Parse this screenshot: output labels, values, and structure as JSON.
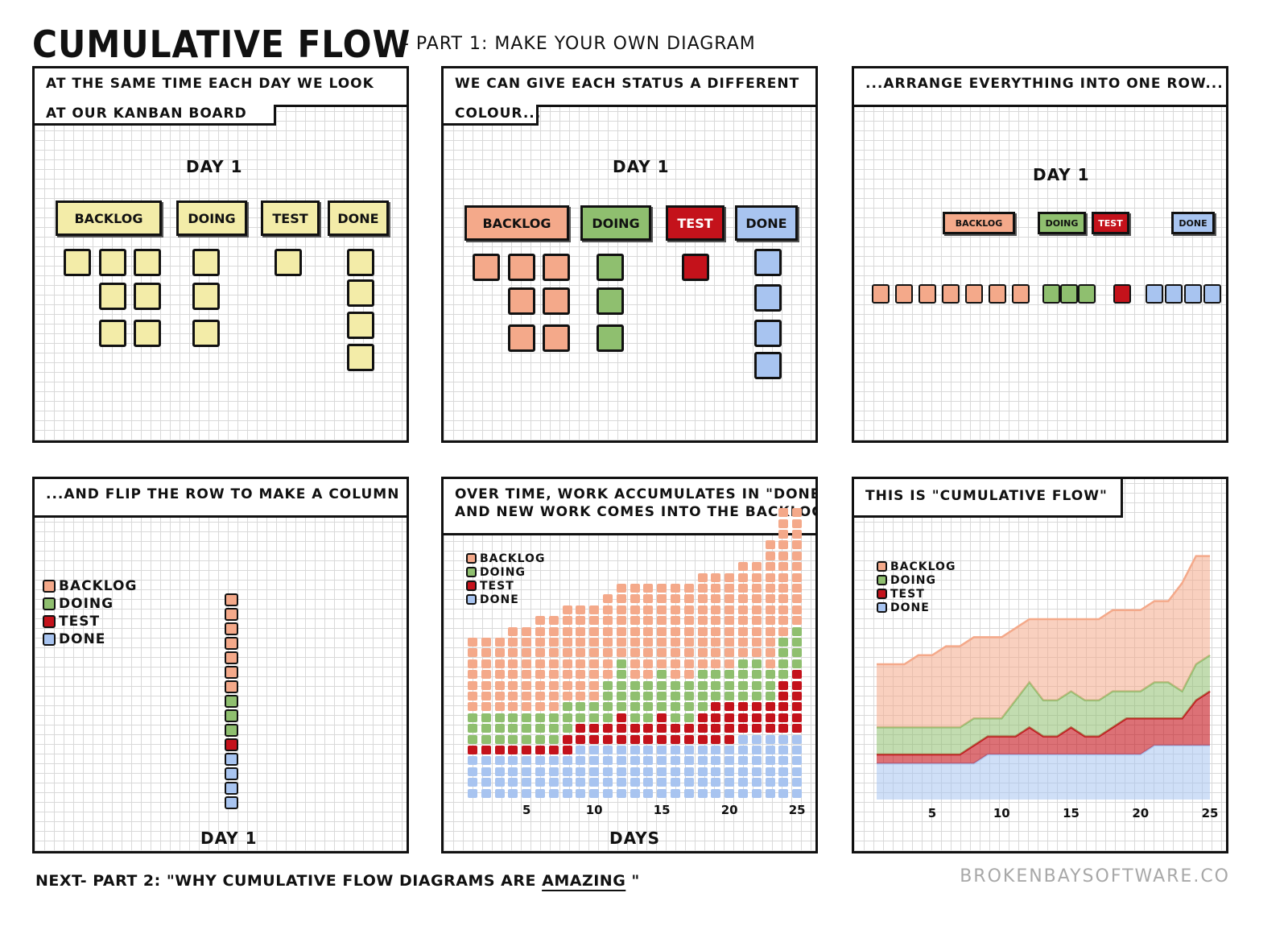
{
  "header": {
    "title": "CUMULATIVE FLOW",
    "subtitle": "- PART 1: MAKE YOUR OWN DIAGRAM"
  },
  "statuses": [
    {
      "key": "backlog",
      "label": "BACKLOG",
      "color": "#f4a98a"
    },
    {
      "key": "doing",
      "label": "DOING",
      "color": "#8fbf6f"
    },
    {
      "key": "test",
      "label": "TEST",
      "color": "#c4121b"
    },
    {
      "key": "done",
      "label": "DONE",
      "color": "#a8c4f0"
    }
  ],
  "board_color": "#f3eca8",
  "day_label": "DAY 1",
  "day1_counts": {
    "backlog": 7,
    "doing": 3,
    "test": 1,
    "done": 4
  },
  "panels": [
    {
      "caption_line1": "AT THE SAME TIME EACH DAY WE LOOK",
      "caption_line2": "AT OUR KANBAN BOARD"
    },
    {
      "caption_line1": "WE CAN GIVE EACH STATUS A DIFFERENT",
      "caption_line2": "COLOUR..."
    },
    {
      "caption_line1": "...ARRANGE EVERYTHING INTO ONE ROW..."
    },
    {
      "caption_line1": "...AND FLIP THE ROW TO MAKE A COLUMN"
    },
    {
      "caption_line1": "OVER TIME, WORK ACCUMULATES IN \"DONE\"",
      "caption_line2": "AND NEW WORK COMES INTO THE BACKLOG",
      "xlabel": "DAYS"
    },
    {
      "caption_line1": "THIS IS \"CUMULATIVE FLOW\""
    }
  ],
  "chart_data": {
    "type": "area",
    "stacked": true,
    "x": [
      1,
      2,
      3,
      4,
      5,
      6,
      7,
      8,
      9,
      10,
      11,
      12,
      13,
      14,
      15,
      16,
      17,
      18,
      19,
      20,
      21,
      22,
      23,
      24,
      25
    ],
    "xticks": [
      5,
      10,
      15,
      20,
      25
    ],
    "xlabel": "DAYS",
    "legend_position": "top-left",
    "grid": true,
    "series": [
      {
        "name": "DONE",
        "color": "#a8c4f0",
        "values": [
          4,
          4,
          4,
          4,
          4,
          4,
          4,
          4,
          5,
          5,
          5,
          5,
          5,
          5,
          5,
          5,
          5,
          5,
          5,
          5,
          6,
          6,
          6,
          6,
          6
        ]
      },
      {
        "name": "TEST",
        "color": "#c4121b",
        "values": [
          1,
          1,
          1,
          1,
          1,
          1,
          1,
          2,
          2,
          2,
          2,
          3,
          2,
          2,
          3,
          2,
          2,
          3,
          4,
          4,
          3,
          3,
          3,
          5,
          6
        ]
      },
      {
        "name": "DOING",
        "color": "#8fbf6f",
        "values": [
          3,
          3,
          3,
          3,
          3,
          3,
          3,
          3,
          2,
          2,
          4,
          5,
          4,
          4,
          4,
          4,
          4,
          4,
          3,
          3,
          4,
          4,
          3,
          4,
          4
        ]
      },
      {
        "name": "BACKLOG",
        "color": "#f4a98a",
        "values": [
          7,
          7,
          7,
          8,
          8,
          9,
          9,
          9,
          9,
          9,
          8,
          7,
          9,
          9,
          8,
          9,
          9,
          9,
          9,
          9,
          9,
          9,
          12,
          12,
          11
        ]
      }
    ]
  },
  "footer": {
    "prefix": "NEXT- PART 2: \"WHY CUMULATIVE FLOW DIAGRAMS ARE ",
    "emphasis": "AMAZING",
    "suffix": " \"",
    "credit": "BROKENBAYSOFTWARE.CO"
  }
}
